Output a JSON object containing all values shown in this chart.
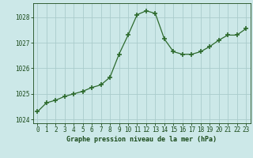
{
  "x": [
    0,
    1,
    2,
    3,
    4,
    5,
    6,
    7,
    8,
    9,
    10,
    11,
    12,
    13,
    14,
    15,
    16,
    17,
    18,
    19,
    20,
    21,
    22,
    23
  ],
  "y": [
    1024.3,
    1024.65,
    1024.75,
    1024.9,
    1025.0,
    1025.1,
    1025.25,
    1025.35,
    1025.65,
    1026.55,
    1027.3,
    1028.1,
    1028.25,
    1028.15,
    1027.15,
    1026.65,
    1026.55,
    1026.55,
    1026.65,
    1026.85,
    1027.1,
    1027.3,
    1027.3,
    1027.55
  ],
  "line_color": "#2d6a2d",
  "marker_color": "#2d6a2d",
  "bg_color": "#cce8e8",
  "grid_color": "#aacccc",
  "xlabel": "Graphe pression niveau de la mer (hPa)",
  "title_color": "#1a4a1a",
  "tick_label_color": "#1a4a1a",
  "ylim": [
    1023.85,
    1028.55
  ],
  "yticks": [
    1024,
    1025,
    1026,
    1027,
    1028
  ],
  "xlim": [
    -0.5,
    23.5
  ],
  "xticks": [
    0,
    1,
    2,
    3,
    4,
    5,
    6,
    7,
    8,
    9,
    10,
    11,
    12,
    13,
    14,
    15,
    16,
    17,
    18,
    19,
    20,
    21,
    22,
    23
  ],
  "figsize": [
    3.2,
    2.0
  ],
  "dpi": 100
}
